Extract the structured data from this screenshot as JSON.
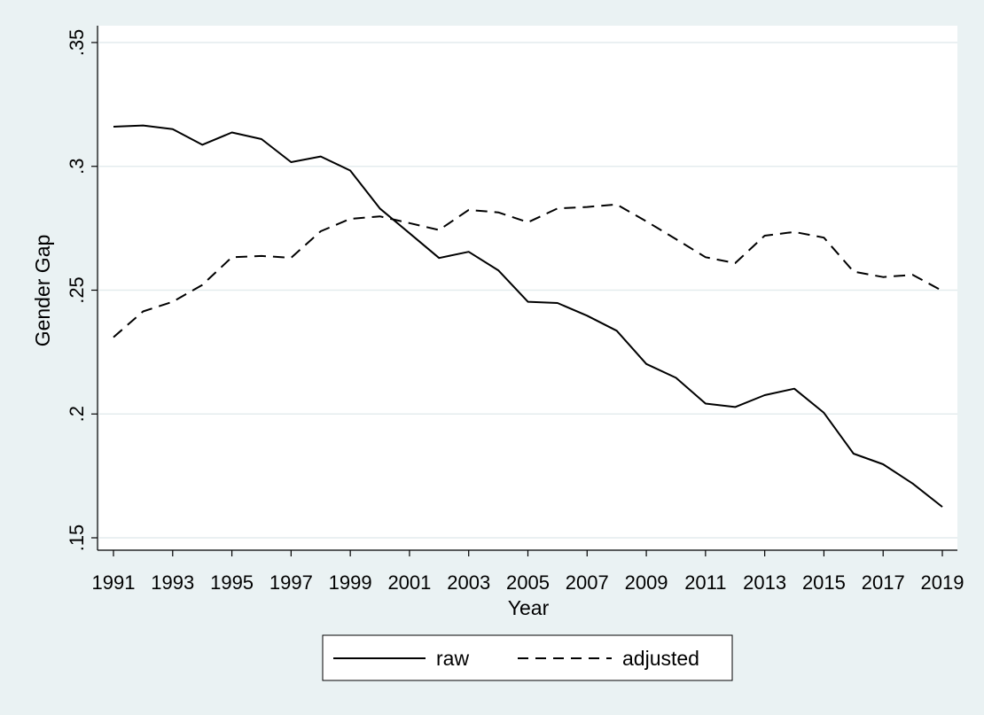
{
  "chart_data": {
    "type": "line",
    "title": "",
    "xlabel": "Year",
    "ylabel": "Gender Gap",
    "xlim": [
      1991,
      2019
    ],
    "ylim": [
      0.15,
      0.35
    ],
    "grid": true,
    "legend_position": "bottom",
    "x": [
      1991,
      1992,
      1993,
      1994,
      1995,
      1996,
      1997,
      1998,
      1999,
      2000,
      2001,
      2002,
      2003,
      2004,
      2005,
      2006,
      2007,
      2008,
      2009,
      2010,
      2011,
      2012,
      2013,
      2014,
      2015,
      2016,
      2017,
      2018,
      2019
    ],
    "x_ticks": [
      1991,
      1993,
      1995,
      1997,
      1999,
      2001,
      2003,
      2005,
      2007,
      2009,
      2011,
      2013,
      2015,
      2017,
      2019
    ],
    "x_tick_labels": [
      "1991",
      "1993",
      "1995",
      "1997",
      "1999",
      "2001",
      "2003",
      "2005",
      "2007",
      "2009",
      "2011",
      "2013",
      "2015",
      "2017",
      "2019"
    ],
    "y_ticks": [
      0.15,
      0.2,
      0.25,
      0.3,
      0.35
    ],
    "y_tick_labels": [
      ".15",
      ".2",
      ".25",
      ".3",
      ".35"
    ],
    "series": [
      {
        "name": "raw",
        "style": "solid",
        "color": "#000000",
        "values": [
          0.316,
          0.3165,
          0.315,
          0.3087,
          0.3137,
          0.311,
          0.3017,
          0.304,
          0.2983,
          0.283,
          0.273,
          0.263,
          0.2655,
          0.258,
          0.2453,
          0.2448,
          0.2397,
          0.2336,
          0.2202,
          0.2146,
          0.2042,
          0.2028,
          0.2076,
          0.2102,
          0.2005,
          0.184,
          0.1797,
          0.1719,
          0.1625
        ]
      },
      {
        "name": "adjusted",
        "style": "dashed",
        "color": "#000000",
        "values": [
          0.231,
          0.2414,
          0.2453,
          0.2521,
          0.2633,
          0.2638,
          0.2631,
          0.2738,
          0.2788,
          0.2798,
          0.2771,
          0.2743,
          0.2824,
          0.2814,
          0.2774,
          0.283,
          0.2836,
          0.2846,
          0.2778,
          0.2706,
          0.2633,
          0.2609,
          0.272,
          0.2735,
          0.2712,
          0.2575,
          0.2553,
          0.2562,
          0.2497
        ]
      }
    ]
  }
}
